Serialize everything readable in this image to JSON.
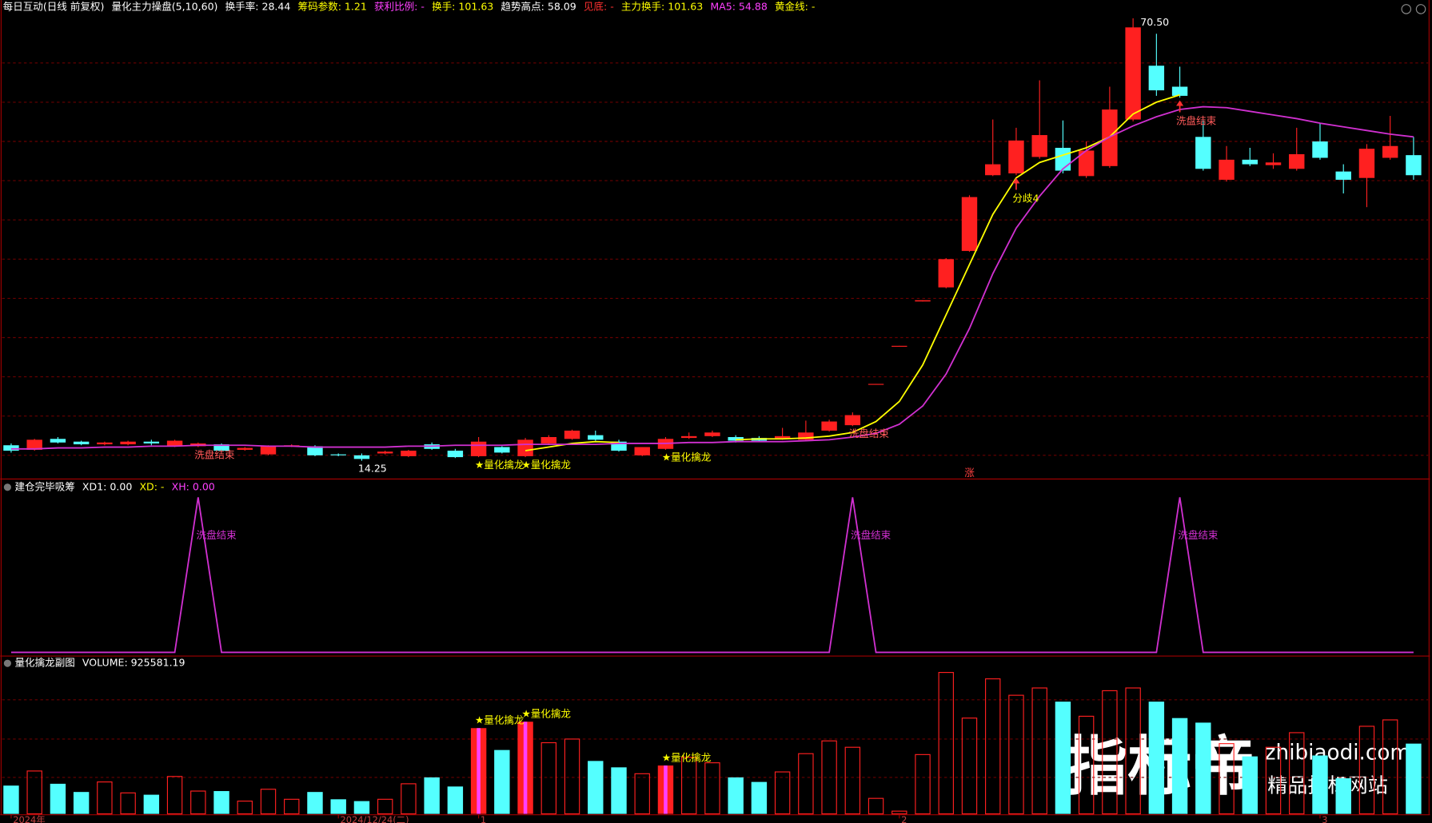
{
  "chart_data": [
    {
      "type": "candlestick",
      "header": [
        {
          "text": "每日互动(日线 前复权)",
          "color": "#ffffff"
        },
        {
          "text": "量化主力操盘(5,10,60)",
          "color": "#ffffff"
        },
        {
          "text": "换手率: 28.44",
          "color": "#ffffff"
        },
        {
          "text": "筹码参数: 1.21",
          "color": "#ffff00"
        },
        {
          "text": "获利比例: -",
          "color": "#ff40ff"
        },
        {
          "text": "换手: 101.63",
          "color": "#ffff00"
        },
        {
          "text": "趋势高点: 58.09",
          "color": "#ffffff"
        },
        {
          "text": "见底: -",
          "color": "#ff3030"
        },
        {
          "text": "主力换手: 101.63",
          "color": "#ffff00"
        },
        {
          "text": "MA5: 54.88",
          "color": "#ff40ff"
        },
        {
          "text": "黄金线: -",
          "color": "#ffff00"
        }
      ],
      "up_color": "#ff2020",
      "down_color": "#54ffff",
      "ylim": [
        12.16,
        71.43
      ],
      "ohlc": [
        [
          16.22,
          16.45,
          15.29,
          15.53
        ],
        [
          15.64,
          17.03,
          15.53,
          16.92
        ],
        [
          17.03,
          17.26,
          16.45,
          16.57
        ],
        [
          16.68,
          16.8,
          16.22,
          16.34
        ],
        [
          16.34,
          16.68,
          16.22,
          16.57
        ],
        [
          16.34,
          16.8,
          16.22,
          16.68
        ],
        [
          16.68,
          16.92,
          16.22,
          16.45
        ],
        [
          16.1,
          16.92,
          15.99,
          16.8
        ],
        [
          16.1,
          16.57,
          15.99,
          16.45
        ],
        [
          16.34,
          16.45,
          15.41,
          15.53
        ],
        [
          15.64,
          15.99,
          15.53,
          15.88
        ],
        [
          15.06,
          16.22,
          14.94,
          16.1
        ],
        [
          16.1,
          16.34,
          15.99,
          16.22
        ],
        [
          16.1,
          16.22,
          14.83,
          14.94
        ],
        [
          15.06,
          15.18,
          14.83,
          14.94
        ],
        [
          14.94,
          15.18,
          14.25,
          14.48
        ],
        [
          15.18,
          15.53,
          15.06,
          15.41
        ],
        [
          14.83,
          15.64,
          14.71,
          15.53
        ],
        [
          16.34,
          16.57,
          15.64,
          15.76
        ],
        [
          15.53,
          15.76,
          14.6,
          14.71
        ],
        [
          14.83,
          17.26,
          14.71,
          16.68
        ],
        [
          15.99,
          16.1,
          15.18,
          15.29
        ],
        [
          14.83,
          17.15,
          14.71,
          16.92
        ],
        [
          16.45,
          17.5,
          16.34,
          17.26
        ],
        [
          17.03,
          18.2,
          16.92,
          18.08
        ],
        [
          17.5,
          18.08,
          16.8,
          16.92
        ],
        [
          16.68,
          16.92,
          15.41,
          15.53
        ],
        [
          14.94,
          15.99,
          14.83,
          15.99
        ],
        [
          15.76,
          17.26,
          15.64,
          17.03
        ],
        [
          17.15,
          17.84,
          17.03,
          17.38
        ],
        [
          17.38,
          18.08,
          17.26,
          17.84
        ],
        [
          17.26,
          17.5,
          16.57,
          16.8
        ],
        [
          17.15,
          17.38,
          16.68,
          16.8
        ],
        [
          17.03,
          18.43,
          16.92,
          17.38
        ],
        [
          16.92,
          19.35,
          16.8,
          17.84
        ],
        [
          18.08,
          19.47,
          17.96,
          19.24
        ],
        [
          18.77,
          20.4,
          18.66,
          20.05
        ],
        [
          23.95,
          24.02,
          23.95,
          24.02
        ],
        [
          28.8,
          28.86,
          28.8,
          28.86
        ],
        [
          34.5,
          34.66,
          34.5,
          34.66
        ],
        [
          36.29,
          40.0,
          36.17,
          39.88
        ],
        [
          40.92,
          48.0,
          40.81,
          47.77
        ],
        [
          50.55,
          57.63,
          50.44,
          51.94
        ],
        [
          50.78,
          56.58,
          50.55,
          54.96
        ],
        [
          52.87,
          62.61,
          52.64,
          55.65
        ],
        [
          54.03,
          57.51,
          50.78,
          51.13
        ],
        [
          50.44,
          54.84,
          50.2,
          53.68
        ],
        [
          51.71,
          61.8,
          51.48,
          58.9
        ],
        [
          57.63,
          70.5,
          57.4,
          69.34
        ],
        [
          64.47,
          68.53,
          60.64,
          61.34
        ],
        [
          61.8,
          64.35,
          60.41,
          60.64
        ],
        [
          55.42,
          57.51,
          51.13,
          51.36
        ],
        [
          49.97,
          54.26,
          49.74,
          52.52
        ],
        [
          52.52,
          54.03,
          51.71,
          51.94
        ],
        [
          51.83,
          53.33,
          51.36,
          52.17
        ],
        [
          51.36,
          56.58,
          51.13,
          53.22
        ],
        [
          54.84,
          57.16,
          52.52,
          52.76
        ],
        [
          51.02,
          51.94,
          48.23,
          49.97
        ],
        [
          50.2,
          54.5,
          46.49,
          53.91
        ],
        [
          52.76,
          58.09,
          52.52,
          54.26
        ],
        [
          53.1,
          55.42,
          49.97,
          50.55
        ]
      ],
      "lines": [
        {
          "color": "#ffff00",
          "values": [
            null,
            null,
            null,
            null,
            null,
            null,
            null,
            null,
            null,
            null,
            null,
            null,
            null,
            null,
            null,
            null,
            null,
            null,
            null,
            null,
            null,
            null,
            15.53,
            15.99,
            16.45,
            16.68,
            16.57,
            null,
            null,
            null,
            null,
            16.92,
            17.03,
            17.03,
            17.15,
            17.38,
            17.84,
            19.24,
            21.79,
            26.43,
            32.81,
            39.19,
            45.56,
            50.2,
            52.17,
            53.1,
            54.03,
            55.42,
            58.32,
            59.83,
            60.76,
            null,
            null,
            null,
            null,
            null,
            null,
            null,
            null,
            null,
            null
          ]
        },
        {
          "color": "#d030d0",
          "values": [
            15.76,
            15.76,
            15.88,
            15.88,
            15.99,
            15.99,
            16.1,
            16.1,
            16.22,
            16.22,
            16.22,
            16.1,
            16.1,
            15.99,
            15.99,
            15.99,
            15.99,
            16.1,
            16.1,
            16.22,
            16.22,
            16.22,
            16.34,
            16.34,
            16.34,
            16.34,
            16.45,
            16.45,
            16.45,
            16.57,
            16.57,
            16.68,
            16.68,
            16.68,
            16.8,
            16.92,
            17.26,
            17.73,
            18.89,
            21.21,
            25.27,
            31.07,
            38.03,
            43.83,
            47.88,
            51.36,
            53.68,
            55.42,
            56.81,
            57.97,
            58.9,
            59.25,
            59.13,
            58.67,
            58.21,
            57.74,
            57.16,
            56.7,
            56.23,
            55.77,
            55.42
          ]
        }
      ],
      "annotations": [
        {
          "text": "70.50",
          "index": 48,
          "place": "high",
          "color": "#ffffff"
        },
        {
          "text": "14.25",
          "index": 15,
          "place": "low",
          "color": "#ffffff"
        },
        {
          "text": "洗盘结束",
          "index": 8,
          "place": "low",
          "color": "#ff5a5a"
        },
        {
          "text": "洗盘结束",
          "index": 36,
          "place": "low",
          "color": "#ff5a5a"
        },
        {
          "text": "洗盘结束",
          "index": 50,
          "place": "low",
          "color": "#ff5a5a",
          "arrow": true
        },
        {
          "text": "分歧4",
          "index": 43,
          "place": "low",
          "color": "#ffff00",
          "arrow": true
        },
        {
          "text": "★量化擒龙",
          "index": 20,
          "place": "low",
          "color": "#ffff00"
        },
        {
          "text": "★量化擒龙",
          "index": 22,
          "place": "low",
          "color": "#ffff00"
        },
        {
          "text": "★量化擒龙",
          "index": 28,
          "place": "low",
          "color": "#ffff00"
        },
        {
          "text": "涨",
          "index": 41,
          "place": "floor",
          "color": "#ff4040"
        }
      ]
    },
    {
      "type": "line",
      "header": [
        {
          "text": "建仓完毕吸筹",
          "color": "#ffffff"
        },
        {
          "text": "XD1: 0.00",
          "color": "#ffffff"
        },
        {
          "text": "XD: -",
          "color": "#ffff00"
        },
        {
          "text": "XH: 0.00",
          "color": "#ff40ff"
        }
      ],
      "color": "#d030d0",
      "ylim": [
        0,
        1
      ],
      "values": [
        0,
        0,
        0,
        0,
        0,
        0,
        0,
        0,
        1,
        0,
        0,
        0,
        0,
        0,
        0,
        0,
        0,
        0,
        0,
        0,
        0,
        0,
        0,
        0,
        0,
        0,
        0,
        0,
        0,
        0,
        0,
        0,
        0,
        0,
        0,
        0,
        1,
        0,
        0,
        0,
        0,
        0,
        0,
        0,
        0,
        0,
        0,
        0,
        0,
        0,
        1,
        0,
        0,
        0,
        0,
        0,
        0,
        0,
        0,
        0,
        0
      ],
      "annotations": [
        {
          "text": "洗盘结束",
          "index": 8,
          "place": "peak",
          "color": "#d030d0"
        },
        {
          "text": "洗盘结束",
          "index": 36,
          "place": "peak",
          "color": "#d030d0"
        },
        {
          "text": "洗盘结束",
          "index": 50,
          "place": "peak",
          "color": "#d030d0"
        }
      ]
    },
    {
      "type": "bar",
      "header": [
        {
          "text": "量化擒龙副图",
          "color": "#ffffff"
        },
        {
          "text": "VOLUME: 925581.19",
          "color": "#ffffff"
        }
      ],
      "ylim": [
        0,
        2067440
      ],
      "values": [
        372600,
        565000,
        396700,
        288500,
        420700,
        276500,
        252400,
        492800,
        300500,
        300500,
        168300,
        324500,
        192300,
        288500,
        192300,
        168300,
        192300,
        396700,
        480800,
        360600,
        1129900,
        841400,
        1214000,
        937600,
        985600,
        697200,
        613000,
        528900,
        637100,
        745200,
        673100,
        480800,
        420700,
        552900,
        793300,
        961600,
        877500,
        204300,
        36100,
        781300,
        1863100,
        1262100,
        1779000,
        1562600,
        1658800,
        1478500,
        1286100,
        1622700,
        1658800,
        1478500,
        1262100,
        1202000,
        925500,
        757300,
        877500,
        1069800,
        769300,
        468800,
        1153900,
        1238100,
        925581.19
      ],
      "categories": [
        "2024年",
        null,
        null,
        null,
        null,
        null,
        null,
        null,
        null,
        null,
        null,
        null,
        null,
        null,
        "2024/12/24(二)",
        null,
        null,
        null,
        null,
        null,
        "1",
        null,
        null,
        null,
        null,
        null,
        null,
        null,
        null,
        null,
        null,
        null,
        null,
        null,
        null,
        null,
        null,
        null,
        "2",
        null,
        null,
        null,
        null,
        null,
        null,
        null,
        null,
        null,
        null,
        null,
        null,
        null,
        null,
        null,
        null,
        null,
        "3",
        null,
        null,
        null,
        null
      ],
      "annotations": [
        {
          "text": "★量化擒龙",
          "index": 20,
          "place": "top",
          "color": "#ffff00"
        },
        {
          "text": "★量化擒龙",
          "index": 22,
          "place": "top",
          "color": "#ffff00"
        },
        {
          "text": "★量化擒龙",
          "index": 28,
          "place": "top",
          "color": "#ffff00"
        }
      ]
    }
  ],
  "watermark": {
    "logo": "指标帝",
    "site": "zhibiaodi.com",
    "tagline": "精品指标网站"
  }
}
